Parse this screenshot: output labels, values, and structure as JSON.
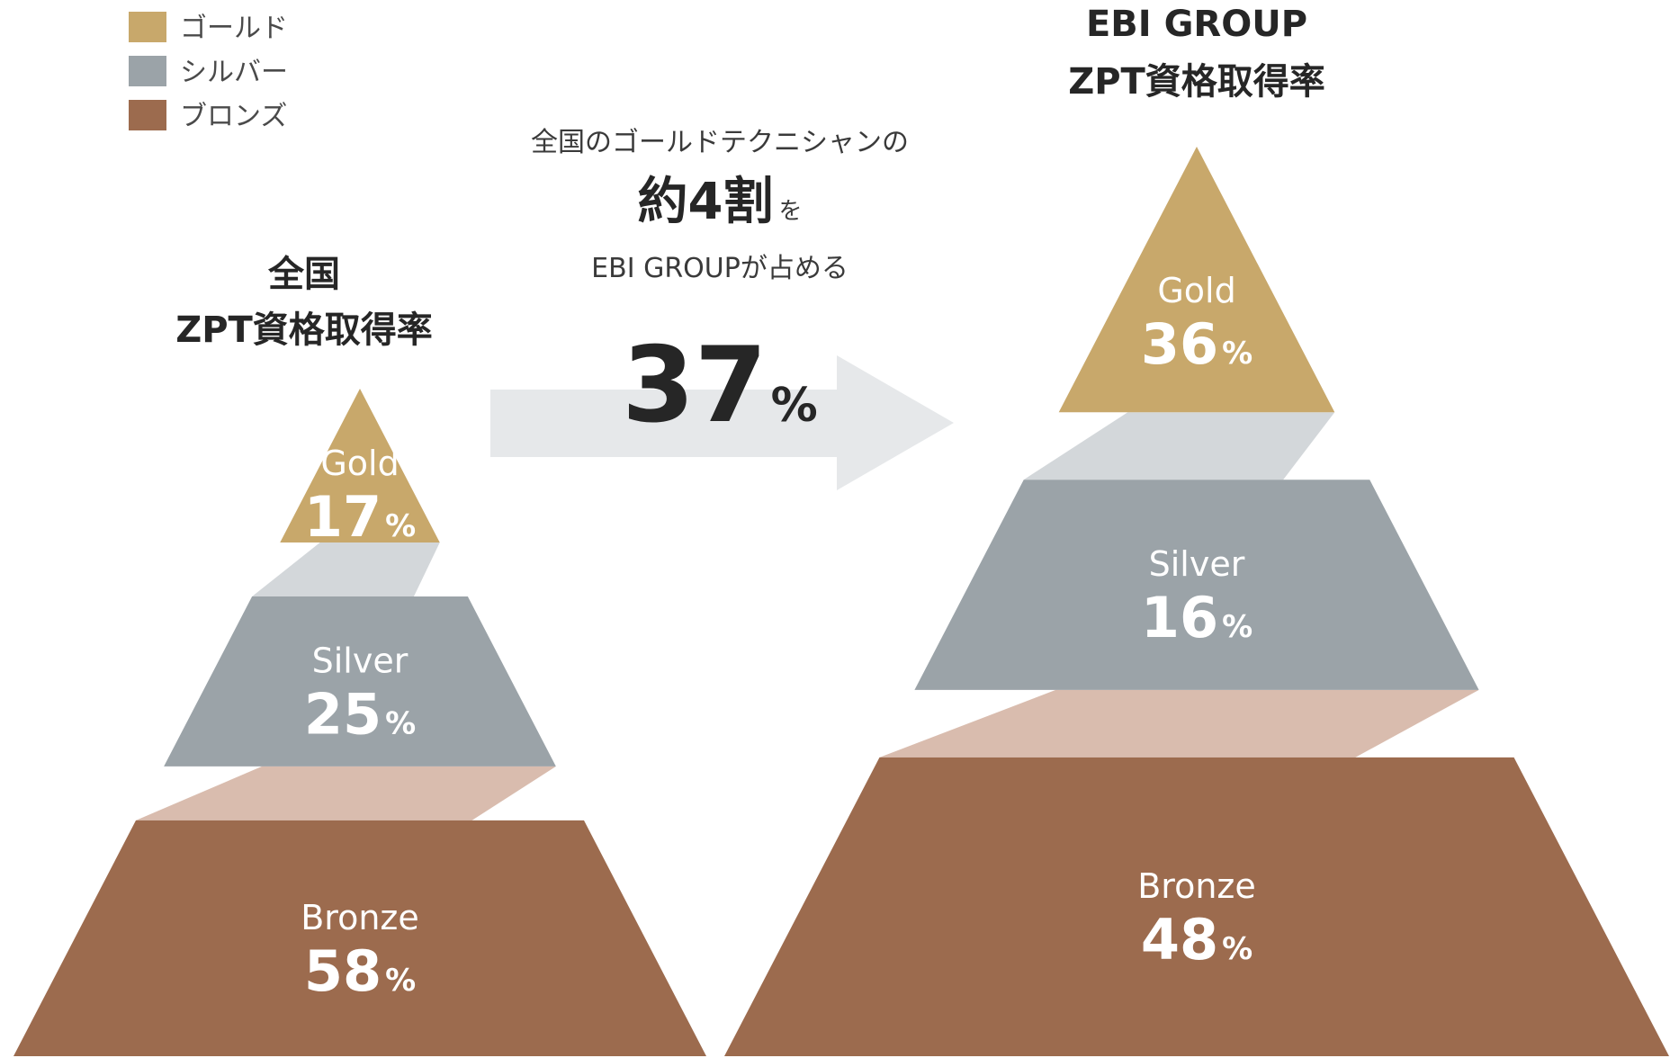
{
  "colors": {
    "gold": "#c8a86b",
    "silver": "#9ba3a8",
    "bronze": "#9c6b4e",
    "silver_band": "#d3d7da",
    "bronze_band": "#d9bcae",
    "arrow": "#e6e8ea"
  },
  "legend": [
    {
      "label": "ゴールド",
      "color_key": "gold"
    },
    {
      "label": "シルバー",
      "color_key": "silver"
    },
    {
      "label": "ブロンズ",
      "color_key": "bronze"
    }
  ],
  "callout": {
    "line1": "全国のゴールドテクニシャンの",
    "line2_strong": "約4割",
    "line2_suffix": "を",
    "line3": "EBI GROUPが占める",
    "value": "37",
    "unit": "%"
  },
  "chart_data": [
    {
      "type": "pyramid",
      "title_lines": [
        "全国",
        "ZPT資格取得率"
      ],
      "unit": "%",
      "tiers": [
        {
          "name": "Gold",
          "value": 17
        },
        {
          "name": "Silver",
          "value": 25
        },
        {
          "name": "Bronze",
          "value": 58
        }
      ]
    },
    {
      "type": "pyramid",
      "title_lines": [
        "EBI GROUP",
        "ZPT資格取得率"
      ],
      "unit": "%",
      "tiers": [
        {
          "name": "Gold",
          "value": 36
        },
        {
          "name": "Silver",
          "value": 16
        },
        {
          "name": "Bronze",
          "value": 48
        }
      ]
    }
  ]
}
